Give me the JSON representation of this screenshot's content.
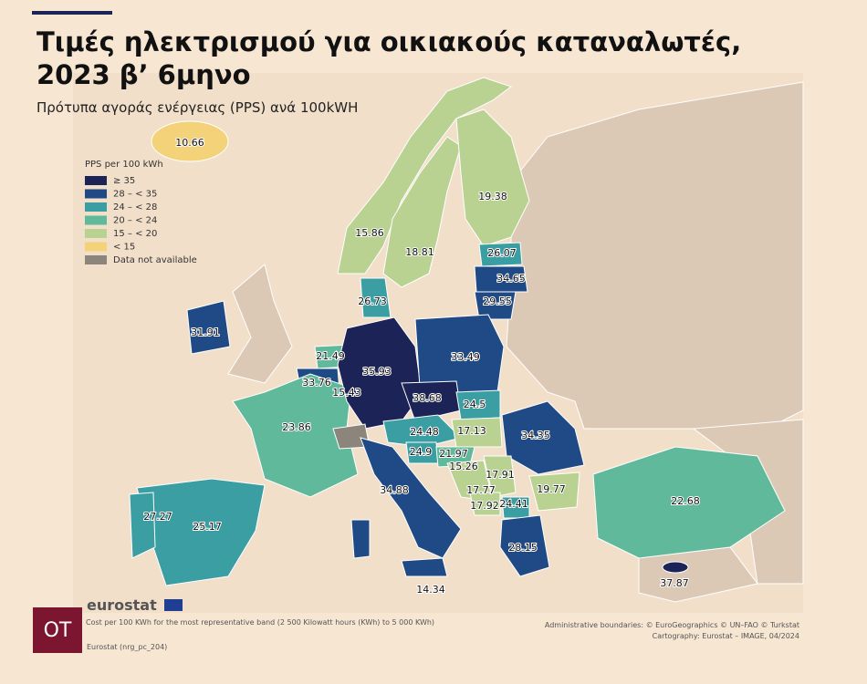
{
  "header": {
    "title_line1": "Τιμές ηλεκτρισμού για οικιακούς καταναλωτές,",
    "title_line2": "2023 β’ 6μηνο",
    "subtitle": "Πρότυπα αγοράς ενέργειας (PPS) ανά 100kWH"
  },
  "legend": {
    "title": "PPS per 100 kWh",
    "items": [
      {
        "label": "≥ 35",
        "color": "#1c2356"
      },
      {
        "label": "28 – < 35",
        "color": "#1f4a86"
      },
      {
        "label": "24 – < 28",
        "color": "#3a9ea3"
      },
      {
        "label": "20 – < 24",
        "color": "#5fb99a"
      },
      {
        "label": "15 – < 20",
        "color": "#b9d292"
      },
      {
        "label": "< 15",
        "color": "#f4d27a"
      },
      {
        "label": "Data not available",
        "color": "#8c857c"
      }
    ]
  },
  "map_values": [
    10.66,
    19.38,
    15.86,
    18.81,
    26.07,
    34.65,
    29.55,
    26.73,
    31.91,
    21.49,
    33.49,
    35.93,
    33.76,
    15.43,
    38.68,
    24.5,
    23.86,
    24.48,
    17.13,
    34.35,
    24.9,
    21.97,
    15.26,
    17.91,
    34.88,
    17.77,
    19.77,
    24.41,
    17.92,
    22.68,
    27.27,
    25.17,
    28.15,
    37.87,
    14.34
  ],
  "footer": {
    "brand": "eurostat",
    "note": "Cost per 100 KWh for the most representative band (2 500 Kilowatt hours (KWh) to 5 000 KWh)",
    "source": "Eurostat (nrg_pc_204)",
    "boundaries": "Administrative boundaries: © EuroGeographics © UN–FAO © Turkstat",
    "cartography": "Cartography: Eurostat – IMAGE, 04/2024",
    "logo": "OT"
  }
}
